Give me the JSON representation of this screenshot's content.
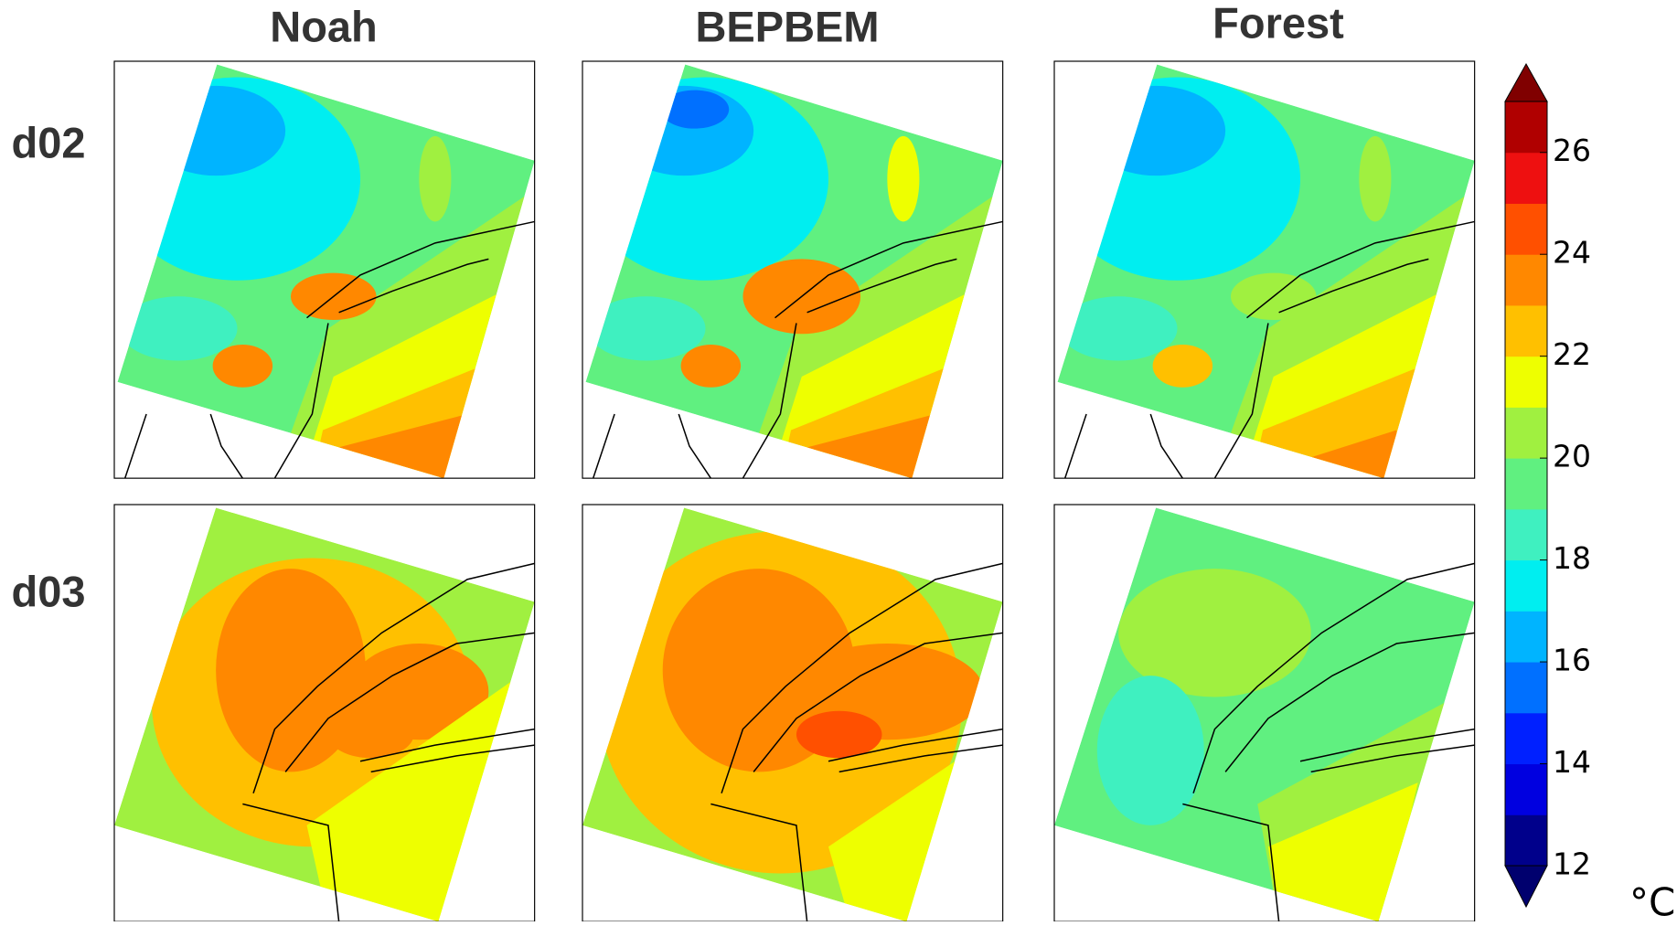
{
  "columns": [
    "Noah",
    "BEPBEM",
    "Forest"
  ],
  "rows": [
    "d02",
    "d03"
  ],
  "chart_data": {
    "type": "colorbar",
    "ylim": [
      12,
      27
    ],
    "yticks": [
      12,
      14,
      16,
      18,
      20,
      22,
      24,
      26
    ],
    "colors": [
      "#00008b",
      "#0000e0",
      "#0020ff",
      "#0070ff",
      "#00b4ff",
      "#00eef0",
      "#3ff0c0",
      "#60f080",
      "#a0f040",
      "#eeff00",
      "#ffc000",
      "#ff8800",
      "#ff5000",
      "#ee1010",
      "#b00000"
    ],
    "extend_colors": [
      "#00006e",
      "#800000"
    ],
    "unit": "°C"
  }
}
